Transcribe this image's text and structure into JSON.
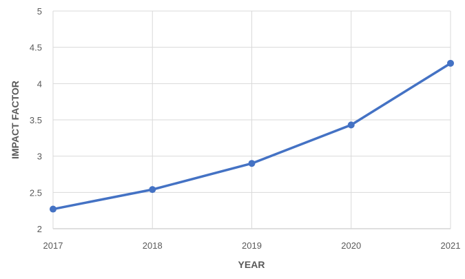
{
  "chart_data": {
    "type": "line",
    "x": [
      "2017",
      "2018",
      "2019",
      "2020",
      "2021"
    ],
    "series": [
      {
        "values": [
          2.27,
          2.54,
          2.9,
          3.43,
          4.28
        ]
      }
    ],
    "title": "",
    "xlabel": "YEAR",
    "ylabel": "IMPACT FACTOR",
    "ylim": [
      2,
      5
    ],
    "yticks": [
      "2",
      "2.5",
      "3",
      "3.5",
      "4",
      "4.5",
      "5"
    ],
    "grid": true,
    "legend": "none",
    "colors": {
      "line": "#4472C4",
      "grid": "#D9D9D9",
      "text": "#595959"
    }
  }
}
